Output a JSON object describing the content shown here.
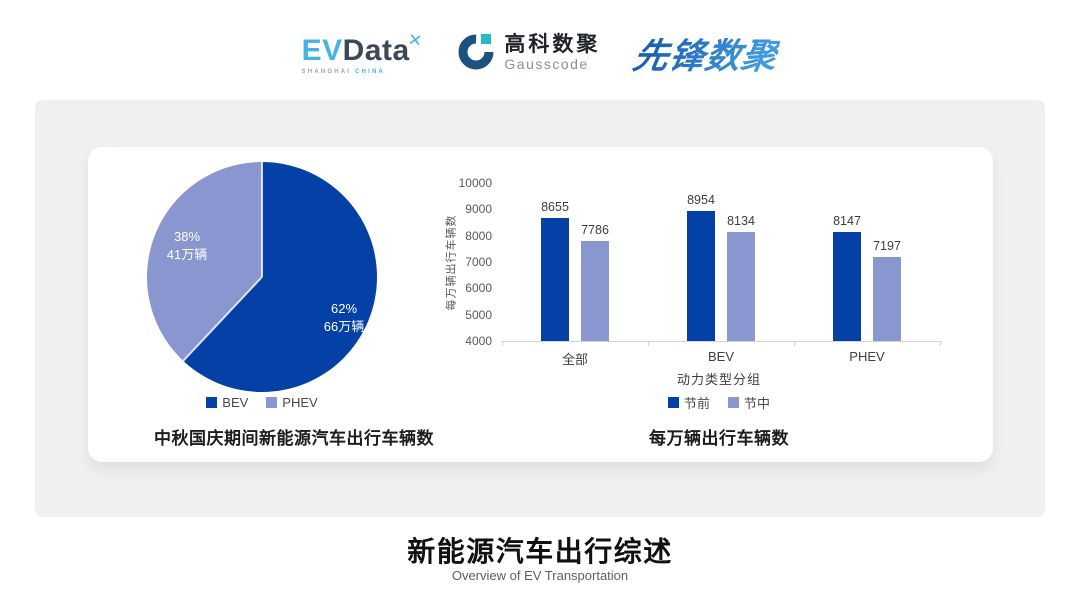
{
  "header": {
    "evdata": {
      "part1": "EV",
      "part2": "Data",
      "x_mark": "✕",
      "sub1": "SHANGHAI",
      "sub2": "CHINA"
    },
    "gausscode": {
      "name_cn": "高科数聚",
      "name_en": "Gausscode"
    },
    "pioneer": {
      "name": "先锋数聚"
    }
  },
  "colors": {
    "series_dark_blue": "#0540a6",
    "series_light_periwinkle": "#8a96d0",
    "panel_gray": "#f0f0f0",
    "evdata_blue": "#45b3e6",
    "gauss_navy": "#1d5180",
    "gauss_teal": "#27b8c9"
  },
  "chart_data": [
    {
      "type": "pie",
      "title": "中秋国庆期间新能源汽车出行车辆数",
      "start_angle": "12-oclock, clockwise",
      "slices": [
        {
          "label": "BEV",
          "percent": 62,
          "percent_label": "62%",
          "value_label": "66万辆",
          "color": "#0540a6"
        },
        {
          "label": "PHEV",
          "percent": 38,
          "percent_label": "38%",
          "value_label": "41万辆",
          "color": "#8a96d0"
        }
      ],
      "legend": [
        "BEV",
        "PHEV"
      ],
      "legend_position": "bottom"
    },
    {
      "type": "bar",
      "title": "每万辆出行车辆数",
      "categories": [
        "全部",
        "BEV",
        "PHEV"
      ],
      "series": [
        {
          "name": "节前",
          "color": "#0540a6",
          "values": [
            8655,
            8954,
            8147
          ]
        },
        {
          "name": "节中",
          "color": "#8a96d0",
          "values": [
            7786,
            8134,
            7197
          ]
        }
      ],
      "xlabel": "动力类型分组",
      "ylabel": "每万辆出行车辆数",
      "ylim": [
        4000,
        10000
      ],
      "yticks": [
        4000,
        5000,
        6000,
        7000,
        8000,
        9000,
        10000
      ],
      "grid": false,
      "legend_position": "bottom"
    }
  ],
  "footer": {
    "title": "新能源汽车出行综述",
    "subtitle": "Overview of EV Transportation"
  }
}
